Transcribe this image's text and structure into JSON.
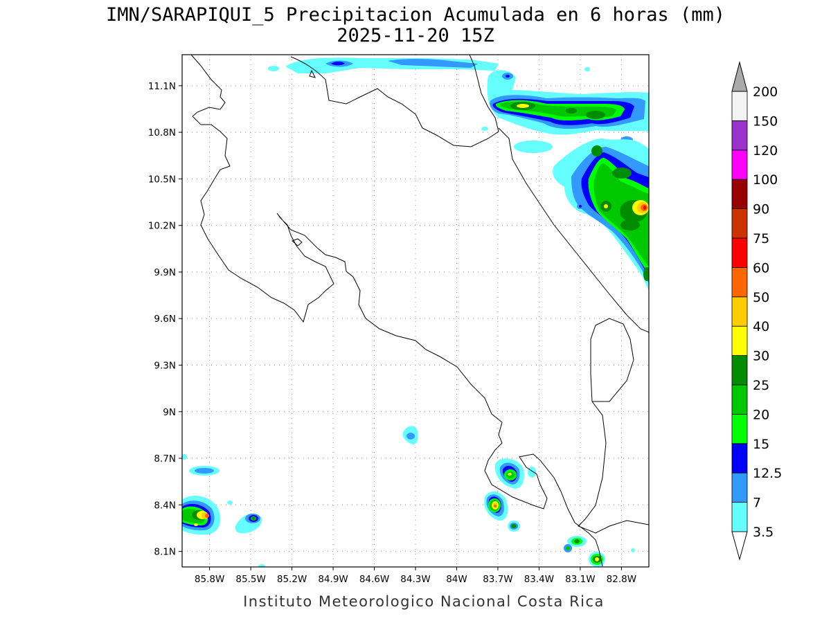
{
  "title": {
    "line1": "IMN/SARAPIQUI_5 Precipitacion Acumulada en 6 horas (mm)",
    "line2": "2025-11-20 15Z"
  },
  "map": {
    "lon_range": [
      -86.0,
      -82.6
    ],
    "lat_range": [
      8.0,
      11.3
    ],
    "lon_ticks": [
      {
        "value": -85.8,
        "label": "85.8W"
      },
      {
        "value": -85.5,
        "label": "85.5W"
      },
      {
        "value": -85.2,
        "label": "85.2W"
      },
      {
        "value": -84.9,
        "label": "84.9W"
      },
      {
        "value": -84.6,
        "label": "84.6W"
      },
      {
        "value": -84.3,
        "label": "84.3W"
      },
      {
        "value": -84.0,
        "label": "84W"
      },
      {
        "value": -83.7,
        "label": "83.7W"
      },
      {
        "value": -83.4,
        "label": "83.4W"
      },
      {
        "value": -83.1,
        "label": "83.1W"
      },
      {
        "value": -82.8,
        "label": "82.8W"
      }
    ],
    "lat_ticks": [
      {
        "value": 11.1,
        "label": "11.1N"
      },
      {
        "value": 10.8,
        "label": "10.8N"
      },
      {
        "value": 10.5,
        "label": "10.5N"
      },
      {
        "value": 10.2,
        "label": "10.2N"
      },
      {
        "value": 9.9,
        "label": "9.9N"
      },
      {
        "value": 9.6,
        "label": "9.6N"
      },
      {
        "value": 9.3,
        "label": "9.3N"
      },
      {
        "value": 9.0,
        "label": "9N"
      },
      {
        "value": 8.7,
        "label": "8.7N"
      },
      {
        "value": 8.4,
        "label": "8.4N"
      },
      {
        "value": 8.1,
        "label": "8.1N"
      }
    ],
    "grid": true
  },
  "colorbar": {
    "units": "mm",
    "levels": [
      {
        "label": "3.5",
        "color": "#66ffff"
      },
      {
        "label": "7",
        "color": "#3399ff"
      },
      {
        "label": "12.5",
        "color": "#0000ff"
      },
      {
        "label": "15",
        "color": "#00ff00"
      },
      {
        "label": "20",
        "color": "#00c800"
      },
      {
        "label": "25",
        "color": "#008c00"
      },
      {
        "label": "30",
        "color": "#ffff00"
      },
      {
        "label": "40",
        "color": "#ffcc00"
      },
      {
        "label": "50",
        "color": "#ff6600"
      },
      {
        "label": "60",
        "color": "#ff0000"
      },
      {
        "label": "75",
        "color": "#cc3300"
      },
      {
        "label": "90",
        "color": "#990000"
      },
      {
        "label": "100",
        "color": "#ff00ff"
      },
      {
        "label": "120",
        "color": "#9933cc"
      },
      {
        "label": "150",
        "color": "#f4f4f4"
      },
      {
        "label": "200",
        "color": "#aaaaaa"
      }
    ]
  },
  "credit": "Instituto Meteorologico Nacional Costa Rica"
}
